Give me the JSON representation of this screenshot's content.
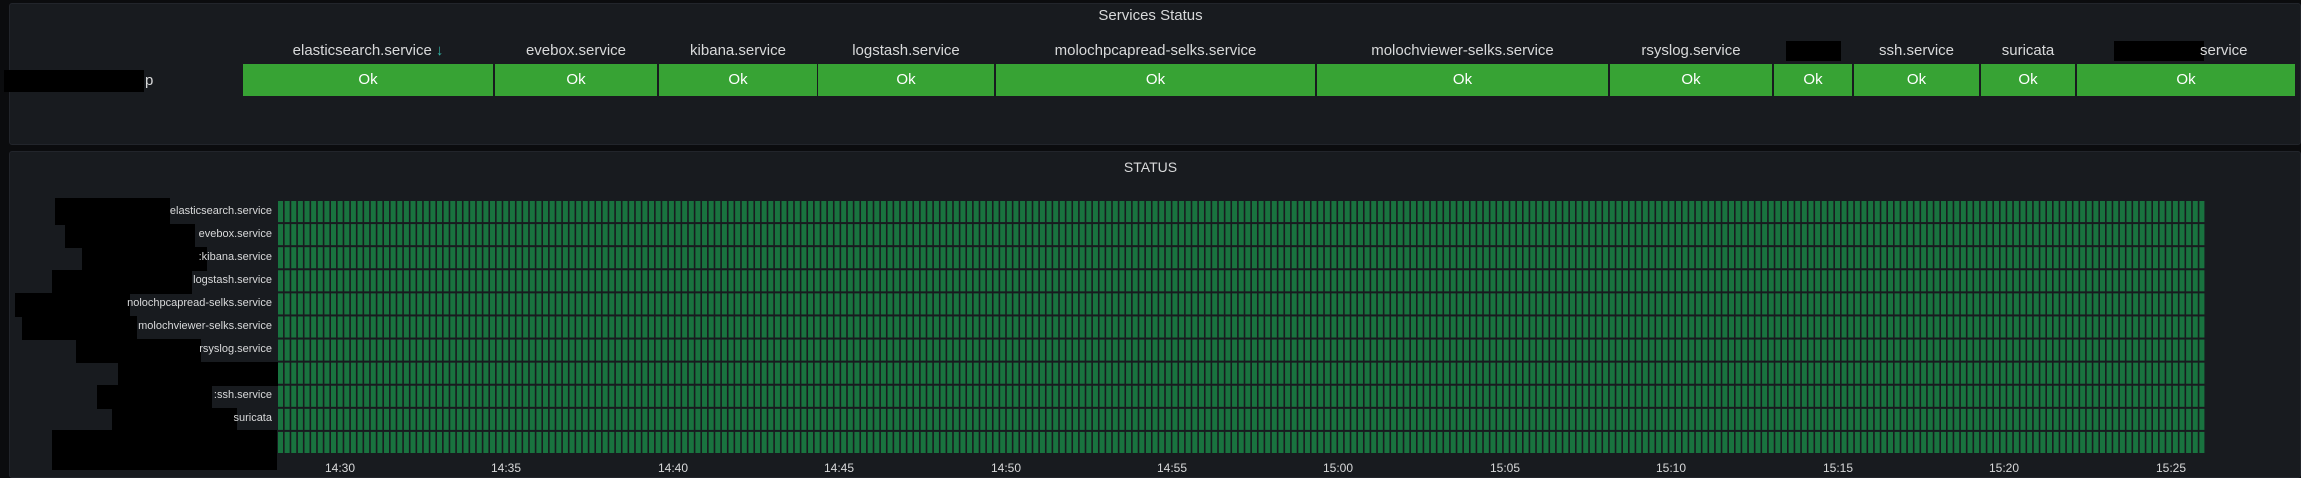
{
  "services_panel": {
    "title": "Services Status",
    "row_label_suffix": "p",
    "columns": [
      {
        "header": "elasticsearch.service",
        "status": "Ok",
        "sorted": true
      },
      {
        "header": "evebox.service",
        "status": "Ok"
      },
      {
        "header": "kibana.service",
        "status": "Ok"
      },
      {
        "header": "logstash.service",
        "status": "Ok"
      },
      {
        "header": "molochpcapread-selks.service",
        "status": "Ok"
      },
      {
        "header": "molochviewer-selks.service",
        "status": "Ok"
      },
      {
        "header": "rsyslog.service",
        "status": "Ok"
      },
      {
        "header": "",
        "status": "Ok",
        "redacted": true
      },
      {
        "header": "ssh.service",
        "status": "Ok"
      },
      {
        "header": "suricata",
        "status": "Ok"
      },
      {
        "header": "service",
        "status": "Ok",
        "partially_redacted": true
      }
    ],
    "sort_icon": "arrow-down-icon",
    "ok_color": "#37a334"
  },
  "status_panel": {
    "title": "STATUS",
    "rows": [
      "elasticsearch.service",
      "evebox.service",
      ":kibana.service",
      "logstash.service",
      "nolochpcapread-selks.service",
      "molochviewer-selks.service",
      "rsyslog.service",
      "",
      ":ssh.service",
      "suricata",
      ""
    ],
    "cell_color": "#19733f",
    "time_ticks": [
      "14:30",
      "14:35",
      "14:40",
      "14:45",
      "14:50",
      "14:55",
      "15:00",
      "15:05",
      "15:10",
      "15:15",
      "15:20",
      "15:25"
    ]
  }
}
